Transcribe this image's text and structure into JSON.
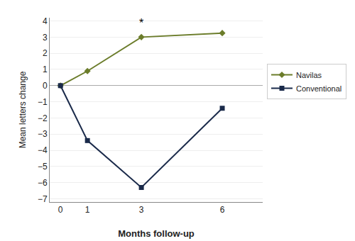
{
  "chart_data": {
    "type": "line",
    "x": [
      0,
      1,
      3,
      6
    ],
    "series": [
      {
        "name": "Navilas",
        "color": "#6b7c2a",
        "marker": "diamond",
        "values": [
          0,
          0.9,
          3.0,
          3.25
        ]
      },
      {
        "name": "Conventional",
        "color": "#1a2a4a",
        "marker": "square",
        "values": [
          0,
          -3.4,
          -6.3,
          -1.4
        ]
      }
    ],
    "xlabel": "Months follow-up",
    "ylabel": "Mean letters change",
    "xlim": [
      -0.4,
      7.5
    ],
    "ylim": [
      -7.2,
      4.2
    ],
    "xticks": [
      0,
      1,
      3,
      6
    ],
    "yticks": [
      {
        "value": -7,
        "label": "−7"
      },
      {
        "value": -6,
        "label": "−6"
      },
      {
        "value": -5,
        "label": "−5"
      },
      {
        "value": -4,
        "label": "−4"
      },
      {
        "value": -3,
        "label": "−3"
      },
      {
        "value": -2,
        "label": "−2"
      },
      {
        "value": -1,
        "label": "−1"
      },
      0,
      1,
      2,
      3,
      4
    ],
    "annotations": [
      {
        "text": "*",
        "x": 3,
        "y": 3.25
      }
    ],
    "grid": "y",
    "legend": "right"
  }
}
